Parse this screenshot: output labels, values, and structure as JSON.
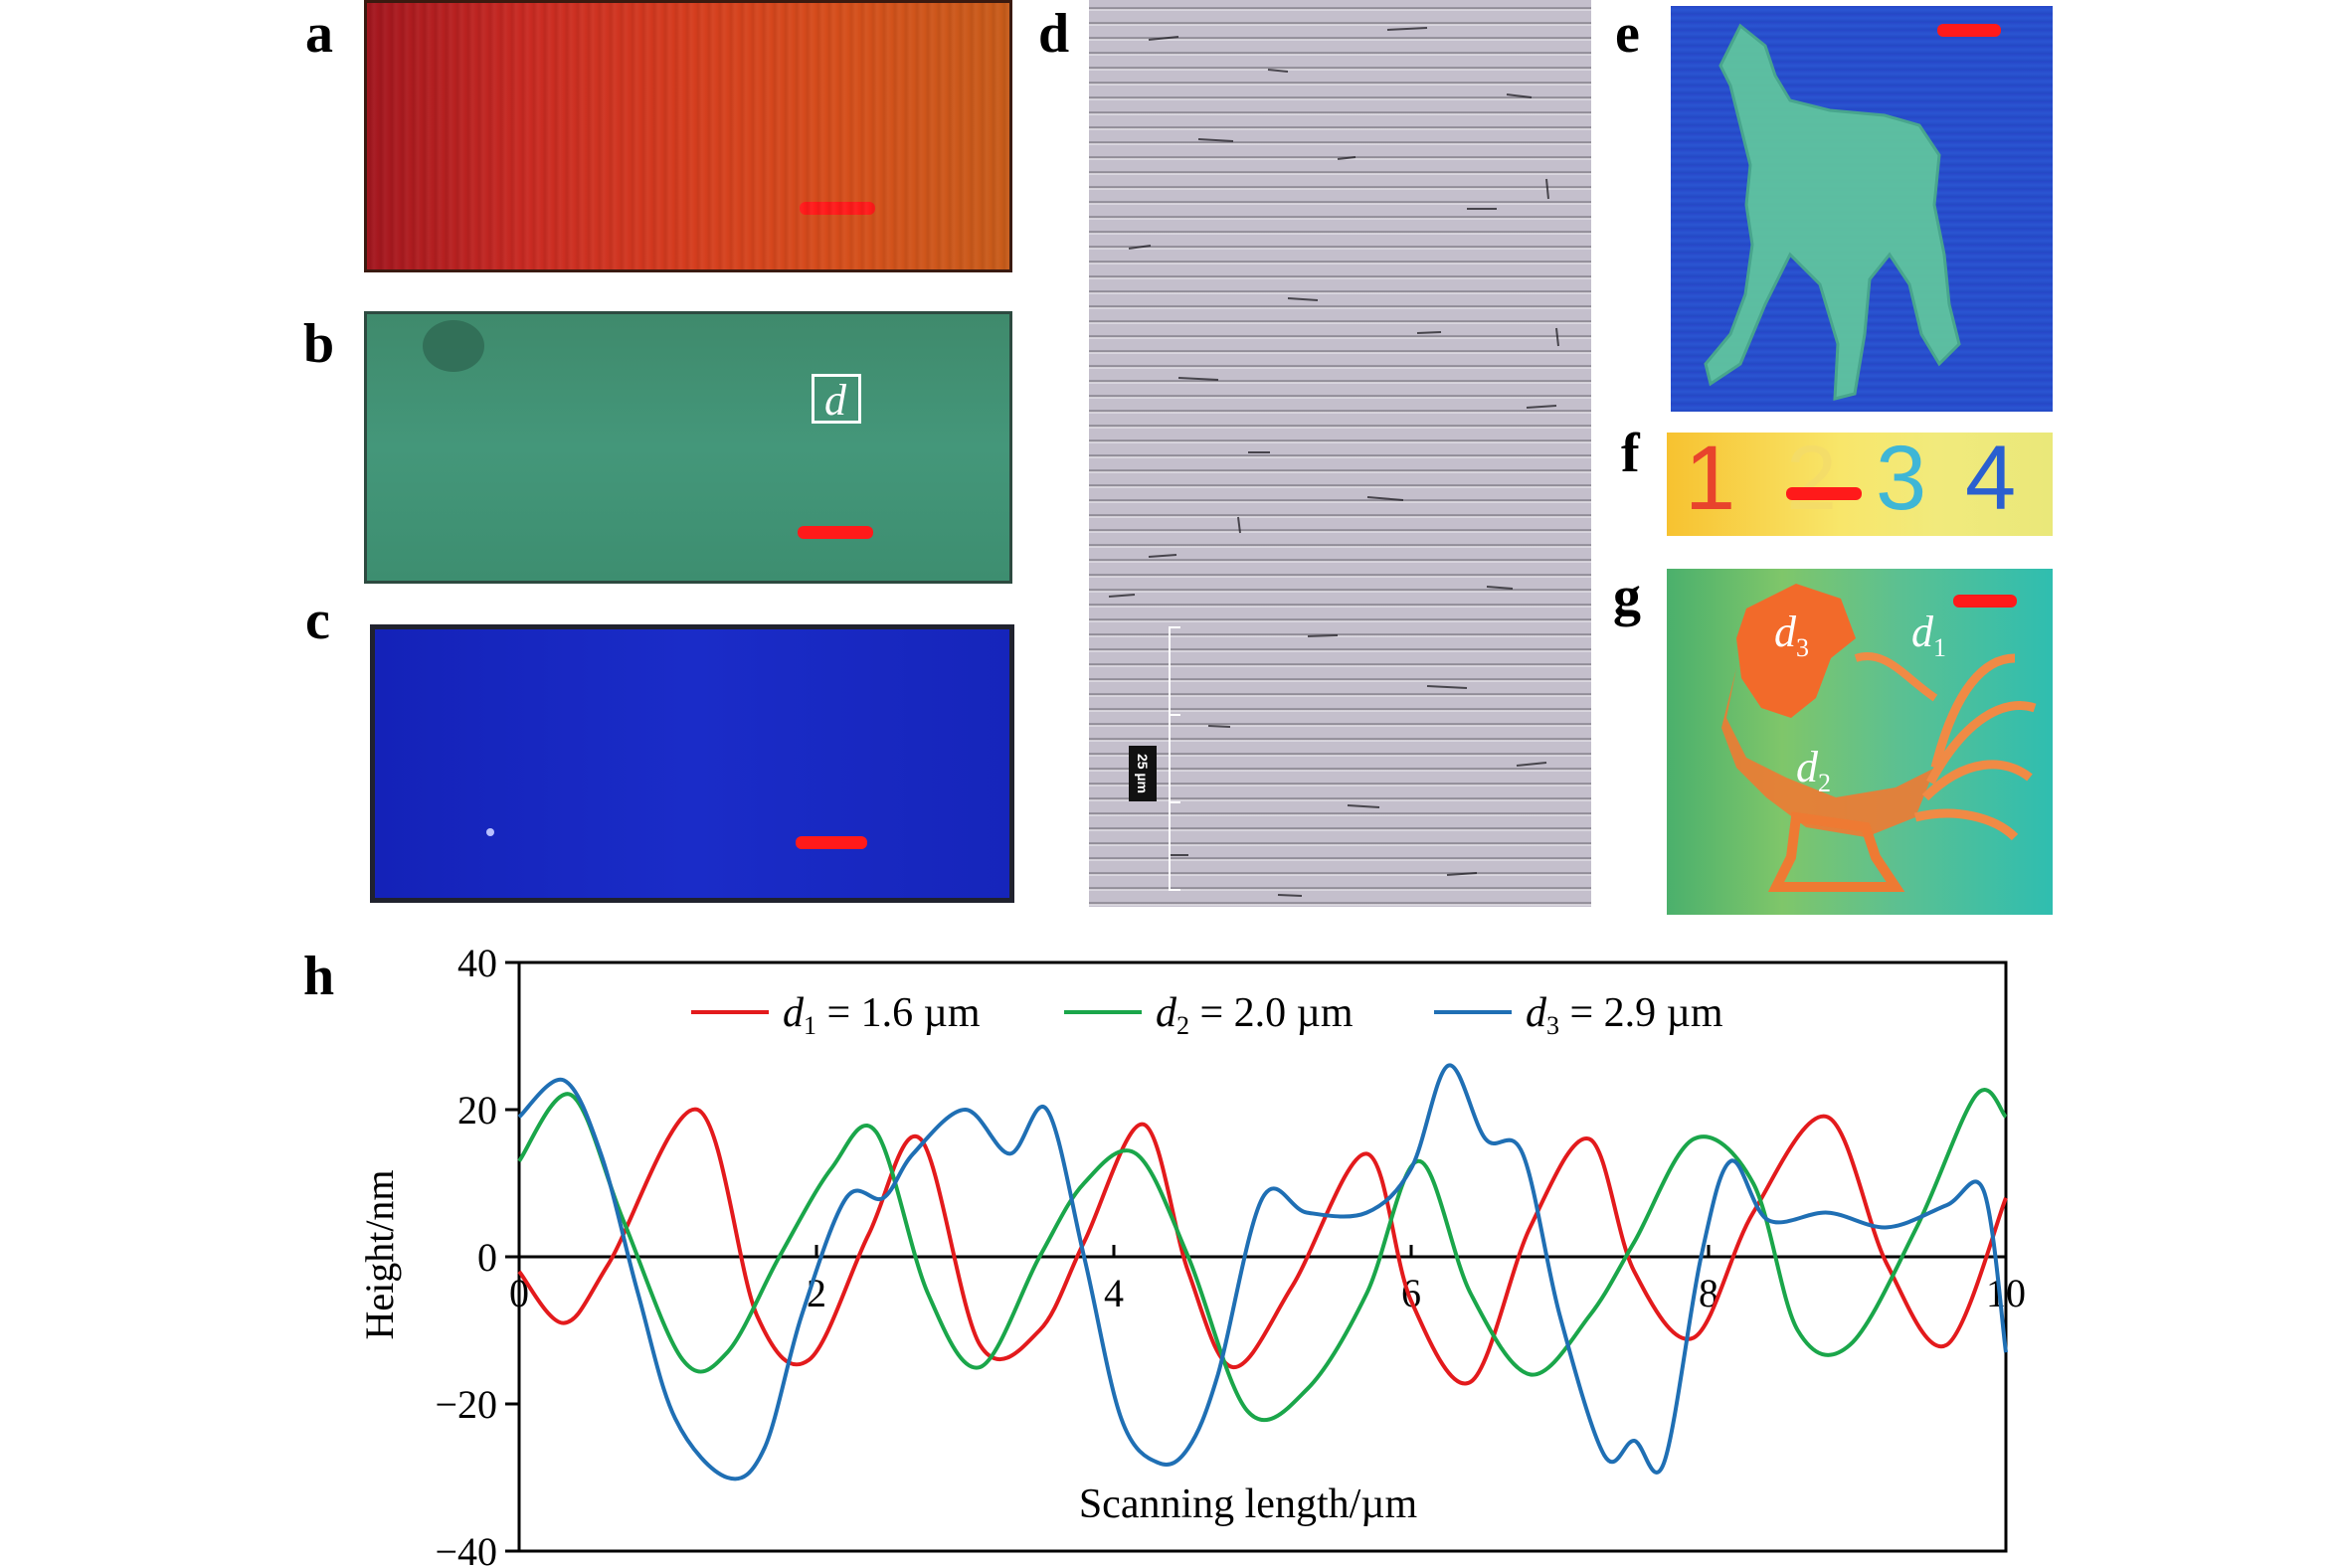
{
  "panel_labels": {
    "a": "a",
    "b": "b",
    "c": "c",
    "d": "d",
    "e": "e",
    "f": "f",
    "g": "g",
    "h": "h"
  },
  "panel_b_box_label": "d",
  "panel_d_scale_label": "25 µm",
  "panel_f_digits": [
    "1",
    "2",
    "3",
    "4"
  ],
  "panel_g_labels": {
    "d3": "d",
    "d3_sub": "3",
    "d1": "d",
    "d1_sub": "1",
    "d2": "d",
    "d2_sub": "2"
  },
  "colors": {
    "scalebar": "#ff1a1a",
    "series_d1": "#e31a1c",
    "series_d2": "#1aa64a",
    "series_d3": "#1f6fb4"
  },
  "chart_data": {
    "type": "line",
    "xlabel": "Scanning length/µm",
    "ylabel": "Height/nm",
    "xlim": [
      0,
      10
    ],
    "ylim": [
      -40,
      40
    ],
    "xticks": [
      0,
      2,
      4,
      6,
      8,
      10
    ],
    "yticks": [
      40,
      20,
      0,
      -20,
      -40
    ],
    "ytick_labels": [
      "40",
      "20",
      "0",
      "−20",
      "−40"
    ],
    "legend_position": "top",
    "series": [
      {
        "name": "d1 = 1.6 µm",
        "name_italic": "d",
        "name_sub": "1",
        "name_rest": " = 1.6 µm",
        "color": "#e31a1c",
        "x": [
          0,
          0.3,
          0.6,
          1.2,
          1.6,
          1.95,
          2.35,
          2.7,
          3.1,
          3.5,
          3.8,
          4.2,
          4.5,
          4.8,
          5.2,
          5.7,
          6.0,
          6.4,
          6.8,
          7.2,
          7.5,
          7.9,
          8.3,
          8.8,
          9.2,
          9.6,
          10
        ],
        "y": [
          -2,
          -9,
          -1,
          20,
          -8,
          -14,
          3,
          16,
          -12,
          -10,
          2,
          18,
          -2,
          -15,
          -4,
          14,
          -6,
          -17,
          4,
          16,
          -2,
          -11,
          6,
          19,
          -1,
          -12,
          8
        ]
      },
      {
        "name": "d2 = 2.0 µm",
        "name_italic": "d",
        "name_sub": "2",
        "name_rest": " = 2.0 µm",
        "color": "#1aa64a",
        "x": [
          0,
          0.35,
          0.7,
          1.1,
          1.4,
          1.75,
          2.1,
          2.4,
          2.75,
          3.1,
          3.5,
          3.8,
          4.15,
          4.5,
          4.9,
          5.3,
          5.7,
          6.05,
          6.4,
          6.8,
          7.2,
          7.5,
          7.9,
          8.3,
          8.6,
          8.95,
          9.4,
          9.8,
          10
        ],
        "y": [
          13,
          22,
          5,
          -14,
          -13,
          0,
          12,
          17,
          -5,
          -15,
          0,
          10,
          14,
          0,
          -21,
          -18,
          -5,
          13,
          -5,
          -16,
          -8,
          2,
          16,
          10,
          -10,
          -12,
          4,
          22,
          19
        ]
      },
      {
        "name": "d3 = 2.9 µm",
        "name_italic": "d",
        "name_sub": "3",
        "name_rest": " = 2.9 µm",
        "color": "#1f6fb4",
        "x": [
          0,
          0.3,
          0.55,
          0.8,
          1.05,
          1.4,
          1.65,
          1.9,
          2.2,
          2.45,
          2.65,
          3.0,
          3.3,
          3.55,
          3.8,
          4.05,
          4.3,
          4.5,
          4.7,
          5.0,
          5.3,
          5.7,
          6.0,
          6.25,
          6.5,
          6.75,
          7.0,
          7.3,
          7.5,
          7.7,
          7.95,
          8.15,
          8.4,
          8.8,
          9.2,
          9.6,
          9.85,
          10
        ],
        "y": [
          19,
          24,
          14,
          -5,
          -22,
          -30,
          -26,
          -8,
          8,
          8,
          14,
          20,
          14,
          20,
          0,
          -22,
          -28,
          -26,
          -16,
          8,
          6,
          6,
          12,
          26,
          16,
          14,
          -8,
          -27,
          -25,
          -28,
          0,
          13,
          5,
          6,
          4,
          7,
          9,
          -13
        ]
      }
    ]
  }
}
